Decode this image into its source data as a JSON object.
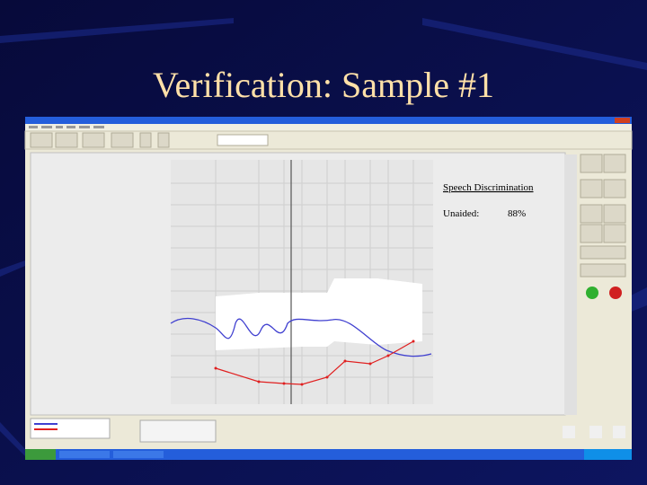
{
  "slide": {
    "title": "Verification: Sample #1"
  },
  "result_box": {
    "heading": "Speech Discrimination",
    "label": "Unaided:",
    "value": "88%"
  }
}
